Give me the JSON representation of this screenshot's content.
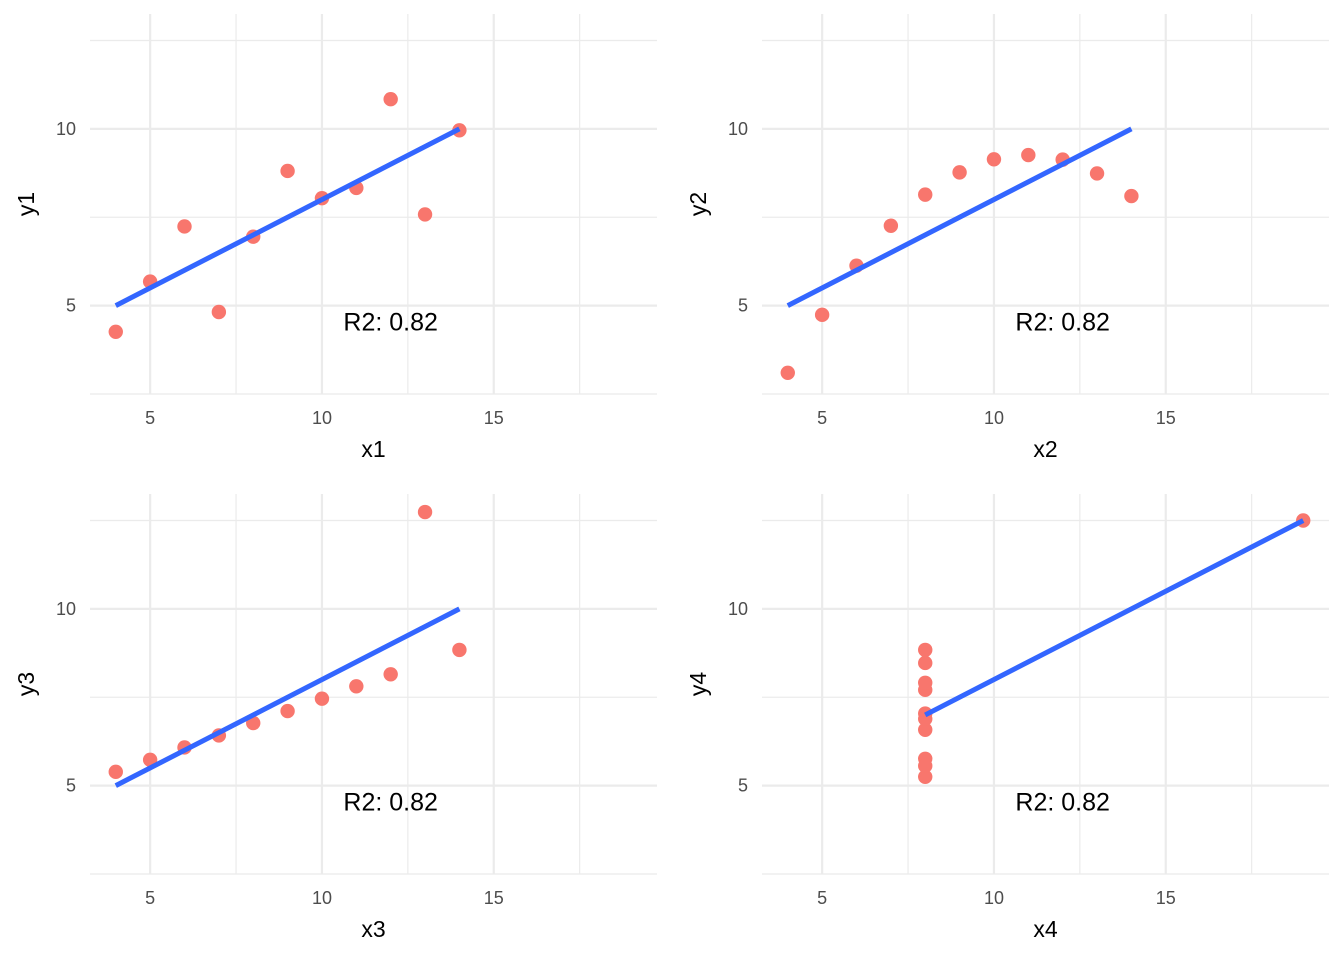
{
  "figure": {
    "point_color": "#f8766d",
    "line_color": "#3366ff",
    "grid_color": "#ebebeb"
  },
  "chart_data": [
    {
      "type": "scatter",
      "title": "",
      "xlabel": "x1",
      "ylabel": "y1",
      "xlim": [
        3.25,
        19.75
      ],
      "ylim": [
        2.5,
        13.25
      ],
      "xticks": [
        5,
        10,
        15
      ],
      "yticks": [
        5,
        10
      ],
      "grid": true,
      "legend": "none",
      "x": [
        10,
        8,
        13,
        9,
        11,
        14,
        6,
        4,
        12,
        7,
        5
      ],
      "y": [
        8.04,
        6.95,
        7.58,
        8.81,
        8.33,
        9.96,
        7.24,
        4.26,
        10.84,
        4.82,
        5.68
      ],
      "fit_line": {
        "x": [
          4,
          14
        ],
        "y": [
          5.0,
          10.0
        ]
      },
      "annotation": "R2: 0.82"
    },
    {
      "type": "scatter",
      "title": "",
      "xlabel": "x2",
      "ylabel": "y2",
      "xlim": [
        3.25,
        19.75
      ],
      "ylim": [
        2.5,
        13.25
      ],
      "xticks": [
        5,
        10,
        15
      ],
      "yticks": [
        5,
        10
      ],
      "grid": true,
      "legend": "none",
      "x": [
        10,
        8,
        13,
        9,
        11,
        14,
        6,
        4,
        12,
        7,
        5
      ],
      "y": [
        9.14,
        8.14,
        8.74,
        8.77,
        9.26,
        8.1,
        6.13,
        3.1,
        9.13,
        7.26,
        4.74
      ],
      "fit_line": {
        "x": [
          4,
          14
        ],
        "y": [
          5.0,
          10.0
        ]
      },
      "annotation": "R2: 0.82"
    },
    {
      "type": "scatter",
      "title": "",
      "xlabel": "x3",
      "ylabel": "y3",
      "xlim": [
        3.25,
        19.75
      ],
      "ylim": [
        2.5,
        13.25
      ],
      "xticks": [
        5,
        10,
        15
      ],
      "yticks": [
        5,
        10
      ],
      "grid": true,
      "legend": "none",
      "x": [
        10,
        8,
        13,
        9,
        11,
        14,
        6,
        4,
        12,
        7,
        5
      ],
      "y": [
        7.46,
        6.77,
        12.74,
        7.11,
        7.81,
        8.84,
        6.08,
        5.39,
        8.15,
        6.42,
        5.73
      ],
      "fit_line": {
        "x": [
          4,
          14
        ],
        "y": [
          5.0,
          10.0
        ]
      },
      "annotation": "R2: 0.82"
    },
    {
      "type": "scatter",
      "title": "",
      "xlabel": "x4",
      "ylabel": "y4",
      "xlim": [
        3.25,
        19.75
      ],
      "ylim": [
        2.5,
        13.25
      ],
      "xticks": [
        5,
        10,
        15
      ],
      "yticks": [
        5,
        10
      ],
      "grid": true,
      "legend": "none",
      "x": [
        8,
        8,
        8,
        8,
        8,
        8,
        8,
        19,
        8,
        8,
        8
      ],
      "y": [
        6.58,
        5.76,
        7.71,
        8.84,
        8.47,
        7.04,
        5.25,
        12.5,
        5.56,
        7.91,
        6.89
      ],
      "fit_line": {
        "x": [
          8,
          19
        ],
        "y": [
          7.0,
          12.5
        ]
      },
      "annotation": "R2: 0.82"
    }
  ]
}
